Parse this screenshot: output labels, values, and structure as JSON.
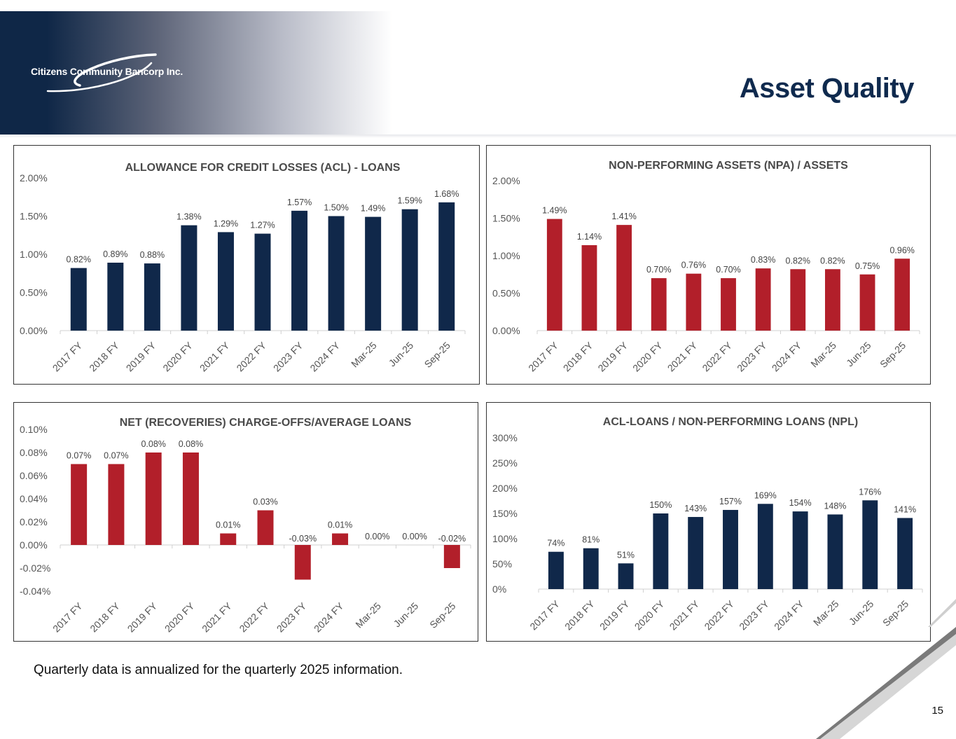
{
  "header": {
    "company_name": "Citizens Community Bancorp Inc.",
    "title": "Asset Quality"
  },
  "footnote": "Quarterly data is annualized for the quarterly 2025 information.",
  "page_number": "15",
  "colors": {
    "navy": "#10284a",
    "red": "#b21f2a",
    "axis": "#d0d0d0"
  },
  "chart_data": [
    {
      "id": "acl",
      "type": "bar",
      "title": "ALLOWANCE FOR CREDIT LOSSES (ACL) - LOANS",
      "categories": [
        "2017 FY",
        "2018 FY",
        "2019 FY",
        "2020 FY",
        "2021 FY",
        "2022 FY",
        "2023 FY",
        "2024 FY",
        "Mar-25",
        "Jun-25",
        "Sep-25"
      ],
      "values": [
        0.82,
        0.89,
        0.88,
        1.38,
        1.29,
        1.27,
        1.57,
        1.5,
        1.49,
        1.59,
        1.68
      ],
      "data_labels": [
        "0.82%",
        "0.89%",
        "0.88%",
        "1.38%",
        "1.29%",
        "1.27%",
        "1.57%",
        "1.50%",
        "1.49%",
        "1.59%",
        "1.68%"
      ],
      "y_ticks": [
        0,
        0.5,
        1,
        1.5,
        2
      ],
      "y_tick_labels": [
        "0.00%",
        "0.50%",
        "1.00%",
        "1.50%",
        "2.00%"
      ],
      "ylim": [
        0,
        2
      ],
      "color": "#10284a"
    },
    {
      "id": "npa",
      "type": "bar",
      "title": "NON-PERFORMING ASSETS (NPA)  / ASSETS",
      "categories": [
        "2017 FY",
        "2018 FY",
        "2019 FY",
        "2020 FY",
        "2021 FY",
        "2022 FY",
        "2023 FY",
        "2024 FY",
        "Mar-25",
        "Jun-25",
        "Sep-25"
      ],
      "values": [
        1.49,
        1.14,
        1.41,
        0.7,
        0.76,
        0.7,
        0.83,
        0.82,
        0.82,
        0.75,
        0.96
      ],
      "data_labels": [
        "1.49%",
        "1.14%",
        "1.41%",
        "0.70%",
        "0.76%",
        "0.70%",
        "0.83%",
        "0.82%",
        "0.82%",
        "0.75%",
        "0.96%"
      ],
      "y_ticks": [
        0,
        0.5,
        1,
        1.5,
        2
      ],
      "y_tick_labels": [
        "0.00%",
        "0.50%",
        "1.00%",
        "1.50%",
        "2.00%"
      ],
      "ylim": [
        0,
        2
      ],
      "color": "#b21f2a"
    },
    {
      "id": "nco",
      "type": "bar",
      "title": "NET (RECOVERIES) CHARGE-OFFS/AVERAGE LOANS",
      "categories": [
        "2017 FY",
        "2018 FY",
        "2019 FY",
        "2020 FY",
        "2021 FY",
        "2022 FY",
        "2023 FY",
        "2024 FY",
        "Mar-25",
        "Jun-25",
        "Sep-25"
      ],
      "values": [
        0.07,
        0.07,
        0.08,
        0.08,
        0.01,
        0.03,
        -0.03,
        0.01,
        0.0,
        0.0,
        -0.02
      ],
      "data_labels": [
        "0.07%",
        "0.07%",
        "0.08%",
        "0.08%",
        "0.01%",
        "0.03%",
        "-0.03%",
        "0.01%",
        "0.00%",
        "0.00%",
        "-0.02%"
      ],
      "y_ticks": [
        -0.04,
        -0.02,
        0,
        0.02,
        0.04,
        0.06,
        0.08,
        0.1
      ],
      "y_tick_labels": [
        "-0.04%",
        "-0.02%",
        "0.00%",
        "0.02%",
        "0.04%",
        "0.06%",
        "0.08%",
        "0.10%"
      ],
      "ylim": [
        -0.04,
        0.1
      ],
      "color": "#b21f2a"
    },
    {
      "id": "npl",
      "type": "bar",
      "title": "ACL-LOANS / NON-PERFORMING LOANS (NPL)",
      "categories": [
        "2017 FY",
        "2018 FY",
        "2019 FY",
        "2020 FY",
        "2021 FY",
        "2022 FY",
        "2023 FY",
        "2024 FY",
        "Mar-25",
        "Jun-25",
        "Sep-25"
      ],
      "values": [
        74,
        81,
        51,
        150,
        143,
        157,
        169,
        154,
        148,
        176,
        141
      ],
      "data_labels": [
        "74%",
        "81%",
        "51%",
        "150%",
        "143%",
        "157%",
        "169%",
        "154%",
        "148%",
        "176%",
        "141%"
      ],
      "y_ticks": [
        0,
        50,
        100,
        150,
        200,
        250,
        300
      ],
      "y_tick_labels": [
        "0%",
        "50%",
        "100%",
        "150%",
        "200%",
        "250%",
        "300%"
      ],
      "ylim": [
        0,
        300
      ],
      "color": "#10284a"
    }
  ]
}
